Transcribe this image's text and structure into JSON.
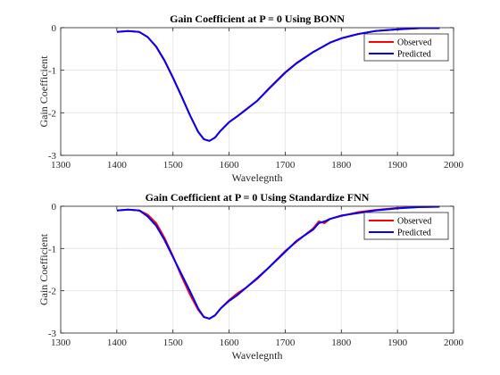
{
  "chart_data": [
    {
      "type": "line",
      "title": "Gain Coefficient at P = 0 Using BONN",
      "xlabel": "Wavelegnth",
      "ylabel": "Gain Coefficient",
      "xlim": [
        1300,
        2000
      ],
      "ylim": [
        -3,
        0
      ],
      "xticks": [
        1300,
        1400,
        1500,
        1600,
        1700,
        1800,
        1900,
        2000
      ],
      "yticks": [
        -3,
        -2,
        -1,
        0
      ],
      "x_tick_labels": [
        "1300",
        "1400",
        "1500",
        "1600",
        "1700",
        "1800",
        "1900",
        "2000"
      ],
      "y_tick_labels": [
        "-3",
        "-2",
        "-1",
        "0"
      ],
      "grid": true,
      "legend_position": "top-right",
      "colors": {
        "Observed": "#ff0000",
        "Predicted": "#0000ff"
      },
      "series": [
        {
          "name": "Observed",
          "x": [
            1400,
            1420,
            1440,
            1455,
            1470,
            1485,
            1500,
            1515,
            1530,
            1545,
            1555,
            1565,
            1575,
            1585,
            1600,
            1615,
            1630,
            1650,
            1670,
            1700,
            1720,
            1750,
            1780,
            1800,
            1830,
            1860,
            1900,
            1940,
            1975
          ],
          "y": [
            -0.1,
            -0.08,
            -0.1,
            -0.22,
            -0.45,
            -0.78,
            -1.18,
            -1.6,
            -2.05,
            -2.45,
            -2.62,
            -2.66,
            -2.58,
            -2.42,
            -2.22,
            -2.08,
            -1.92,
            -1.72,
            -1.44,
            -1.05,
            -0.83,
            -0.57,
            -0.35,
            -0.25,
            -0.15,
            -0.08,
            -0.04,
            -0.01,
            -0.01
          ]
        },
        {
          "name": "Predicted",
          "x": [
            1400,
            1420,
            1440,
            1455,
            1470,
            1485,
            1500,
            1515,
            1530,
            1545,
            1555,
            1565,
            1575,
            1585,
            1600,
            1615,
            1630,
            1650,
            1670,
            1700,
            1720,
            1750,
            1780,
            1800,
            1830,
            1860,
            1900,
            1940,
            1975
          ],
          "y": [
            -0.1,
            -0.08,
            -0.1,
            -0.22,
            -0.44,
            -0.77,
            -1.17,
            -1.6,
            -2.05,
            -2.45,
            -2.62,
            -2.66,
            -2.58,
            -2.42,
            -2.22,
            -2.08,
            -1.93,
            -1.72,
            -1.45,
            -1.06,
            -0.84,
            -0.57,
            -0.35,
            -0.25,
            -0.15,
            -0.08,
            -0.04,
            -0.01,
            -0.01
          ]
        }
      ]
    },
    {
      "type": "line",
      "title": "Gain Coefficient at P = 0 Using Standardize FNN",
      "xlabel": "Wavelegnth",
      "ylabel": "Gain Coefficient",
      "xlim": [
        1300,
        2000
      ],
      "ylim": [
        -3,
        0
      ],
      "xticks": [
        1300,
        1400,
        1500,
        1600,
        1700,
        1800,
        1900,
        2000
      ],
      "yticks": [
        -3,
        -2,
        -1,
        0
      ],
      "x_tick_labels": [
        "1300",
        "1400",
        "1500",
        "1600",
        "1700",
        "1800",
        "1900",
        "2000"
      ],
      "y_tick_labels": [
        "-3",
        "-2",
        "-1",
        "0"
      ],
      "grid": true,
      "legend_position": "top-right",
      "colors": {
        "Observed": "#ff0000",
        "Predicted": "#0000ff"
      },
      "series": [
        {
          "name": "Observed",
          "x": [
            1400,
            1420,
            1440,
            1455,
            1470,
            1485,
            1500,
            1515,
            1530,
            1545,
            1555,
            1565,
            1575,
            1585,
            1600,
            1615,
            1630,
            1650,
            1670,
            1700,
            1720,
            1750,
            1760,
            1770,
            1780,
            1800,
            1830,
            1860,
            1900,
            1940,
            1975
          ],
          "y": [
            -0.1,
            -0.08,
            -0.1,
            -0.2,
            -0.4,
            -0.75,
            -1.18,
            -1.65,
            -2.08,
            -2.45,
            -2.62,
            -2.66,
            -2.58,
            -2.42,
            -2.22,
            -2.06,
            -1.93,
            -1.72,
            -1.46,
            -1.06,
            -0.84,
            -0.52,
            -0.36,
            -0.4,
            -0.3,
            -0.23,
            -0.14,
            -0.09,
            -0.04,
            -0.02,
            -0.01
          ]
        },
        {
          "name": "Predicted",
          "x": [
            1400,
            1420,
            1440,
            1455,
            1470,
            1485,
            1500,
            1515,
            1530,
            1545,
            1555,
            1565,
            1575,
            1585,
            1600,
            1615,
            1630,
            1650,
            1670,
            1700,
            1720,
            1750,
            1760,
            1770,
            1780,
            1800,
            1830,
            1860,
            1900,
            1940,
            1975
          ],
          "y": [
            -0.1,
            -0.08,
            -0.1,
            -0.24,
            -0.46,
            -0.8,
            -1.2,
            -1.6,
            -2.0,
            -2.42,
            -2.62,
            -2.66,
            -2.58,
            -2.42,
            -2.24,
            -2.1,
            -1.93,
            -1.7,
            -1.46,
            -1.08,
            -0.82,
            -0.55,
            -0.4,
            -0.36,
            -0.3,
            -0.22,
            -0.16,
            -0.1,
            -0.05,
            -0.02,
            -0.01
          ]
        }
      ]
    }
  ]
}
